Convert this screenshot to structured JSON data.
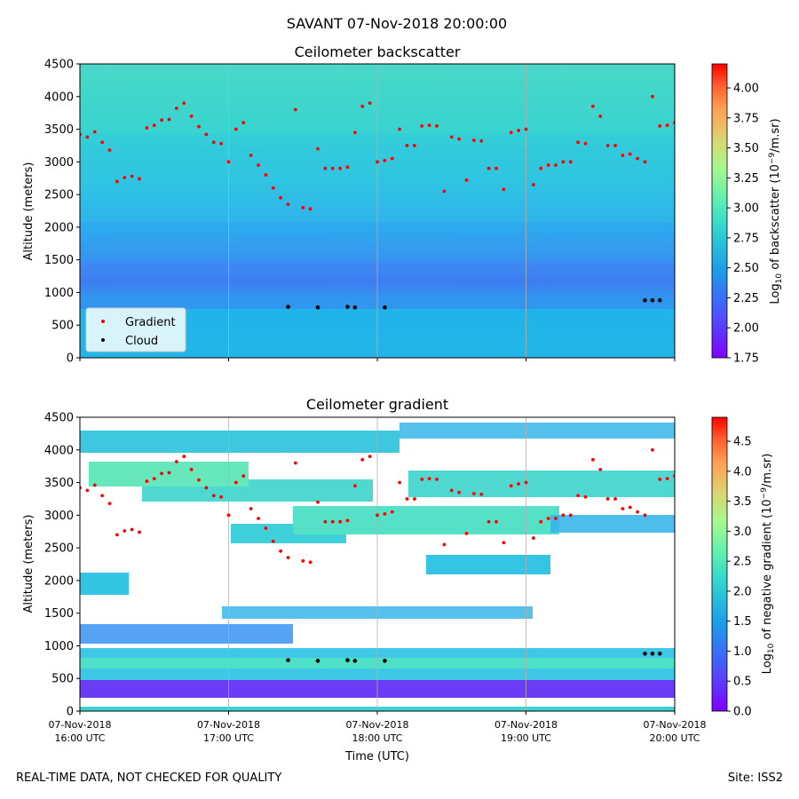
{
  "figure": {
    "suptitle": "SAVANT 07-Nov-2018 20:00:00",
    "footer_left": "REAL-TIME DATA, NOT CHECKED FOR QUALITY",
    "footer_right": "Site: ISS2",
    "xlabel": "Time (UTC)",
    "x_ticks": [
      {
        "line1": "07-Nov-2018",
        "line2": "16:00 UTC"
      },
      {
        "line1": "07-Nov-2018",
        "line2": "17:00 UTC"
      },
      {
        "line1": "07-Nov-2018",
        "line2": "18:00 UTC"
      },
      {
        "line1": "07-Nov-2018",
        "line2": "19:00 UTC"
      },
      {
        "line1": "07-Nov-2018",
        "line2": "20:00 UTC"
      }
    ]
  },
  "chart_data": [
    {
      "type": "heatmap",
      "title": "Ceilometer backscatter",
      "xlabel": "",
      "ylabel": "Altitude (meters)",
      "xlim_hours_utc": [
        16,
        20
      ],
      "ylim": [
        0,
        4500
      ],
      "y_ticks": [
        0,
        500,
        1000,
        1500,
        2000,
        2500,
        3000,
        3500,
        4000,
        4500
      ],
      "grid": "vertical",
      "colorbar": {
        "label": "Log10 of backscatter (10^-9/m.sr)",
        "range": [
          1.75,
          4.2
        ],
        "ticks": [
          "1.75",
          "2.00",
          "2.25",
          "2.50",
          "2.75",
          "3.00",
          "3.25",
          "3.50",
          "3.75",
          "4.00"
        ],
        "colormap": "rainbow"
      },
      "legend": {
        "placement": "lower-left",
        "entries": [
          {
            "name": "Gradient",
            "color": "#ff0000"
          },
          {
            "name": "Cloud",
            "color": "#000000"
          }
        ]
      },
      "series": [
        {
          "name": "Gradient",
          "color": "#ff0000",
          "points": [
            [
              16.0,
              3420
            ],
            [
              16.05,
              3380
            ],
            [
              16.1,
              3460
            ],
            [
              16.15,
              3300
            ],
            [
              16.2,
              3180
            ],
            [
              16.25,
              2700
            ],
            [
              16.3,
              2760
            ],
            [
              16.35,
              2780
            ],
            [
              16.4,
              2740
            ],
            [
              16.45,
              3520
            ],
            [
              16.5,
              3560
            ],
            [
              16.55,
              3640
            ],
            [
              16.6,
              3650
            ],
            [
              16.65,
              3820
            ],
            [
              16.7,
              3900
            ],
            [
              16.75,
              3700
            ],
            [
              16.8,
              3540
            ],
            [
              16.85,
              3420
            ],
            [
              16.9,
              3300
            ],
            [
              16.95,
              3280
            ],
            [
              17.0,
              3000
            ],
            [
              17.05,
              3500
            ],
            [
              17.1,
              3600
            ],
            [
              17.15,
              3100
            ],
            [
              17.2,
              2950
            ],
            [
              17.25,
              2800
            ],
            [
              17.3,
              2600
            ],
            [
              17.35,
              2450
            ],
            [
              17.4,
              2350
            ],
            [
              17.45,
              3800
            ],
            [
              17.5,
              2300
            ],
            [
              17.55,
              2280
            ],
            [
              17.6,
              3200
            ],
            [
              17.65,
              2900
            ],
            [
              17.7,
              2900
            ],
            [
              17.75,
              2900
            ],
            [
              17.8,
              2920
            ],
            [
              17.85,
              3450
            ],
            [
              17.9,
              3850
            ],
            [
              17.95,
              3900
            ],
            [
              18.0,
              3000
            ],
            [
              18.05,
              3020
            ],
            [
              18.1,
              3050
            ],
            [
              18.15,
              3500
            ],
            [
              18.2,
              3250
            ],
            [
              18.25,
              3250
            ],
            [
              18.3,
              3550
            ],
            [
              18.35,
              3560
            ],
            [
              18.4,
              3550
            ],
            [
              18.45,
              2550
            ],
            [
              18.5,
              3380
            ],
            [
              18.55,
              3350
            ],
            [
              18.6,
              2720
            ],
            [
              18.65,
              3330
            ],
            [
              18.7,
              3320
            ],
            [
              18.75,
              2900
            ],
            [
              18.8,
              2900
            ],
            [
              18.85,
              2580
            ],
            [
              18.9,
              3450
            ],
            [
              18.95,
              3480
            ],
            [
              19.0,
              3500
            ],
            [
              19.05,
              2650
            ],
            [
              19.1,
              2900
            ],
            [
              19.15,
              2950
            ],
            [
              19.2,
              2950
            ],
            [
              19.25,
              3000
            ],
            [
              19.3,
              3000
            ],
            [
              19.35,
              3300
            ],
            [
              19.4,
              3280
            ],
            [
              19.45,
              3850
            ],
            [
              19.5,
              3700
            ],
            [
              19.55,
              3250
            ],
            [
              19.6,
              3250
            ],
            [
              19.65,
              3100
            ],
            [
              19.7,
              3120
            ],
            [
              19.75,
              3050
            ],
            [
              19.8,
              3000
            ],
            [
              19.85,
              4000
            ],
            [
              19.9,
              3550
            ],
            [
              19.95,
              3560
            ],
            [
              20.0,
              3600
            ]
          ]
        },
        {
          "name": "Cloud",
          "color": "#000000",
          "points": [
            [
              17.4,
              780
            ],
            [
              17.6,
              770
            ],
            [
              17.8,
              780
            ],
            [
              17.85,
              770
            ],
            [
              18.05,
              770
            ],
            [
              19.8,
              880
            ],
            [
              19.85,
              880
            ],
            [
              19.9,
              880
            ]
          ]
        }
      ]
    },
    {
      "type": "heatmap",
      "title": "Ceilometer gradient",
      "xlabel": "Time (UTC)",
      "ylabel": "Altitude (meters)",
      "xlim_hours_utc": [
        16,
        20
      ],
      "ylim": [
        0,
        4500
      ],
      "y_ticks": [
        0,
        500,
        1000,
        1500,
        2000,
        2500,
        3000,
        3500,
        4000,
        4500
      ],
      "grid": "vertical",
      "colorbar": {
        "label": "Log10 of negative gradient (10^-9/m.sr)",
        "range": [
          0.0,
          4.9
        ],
        "ticks": [
          "0.0",
          "0.5",
          "1.0",
          "1.5",
          "2.0",
          "2.5",
          "3.0",
          "3.5",
          "4.0",
          "4.5"
        ],
        "colormap": "rainbow"
      },
      "series": [
        {
          "name": "Gradient",
          "color": "#ff0000",
          "points": [
            [
              16.0,
              3420
            ],
            [
              16.05,
              3380
            ],
            [
              16.1,
              3460
            ],
            [
              16.15,
              3300
            ],
            [
              16.2,
              3180
            ],
            [
              16.25,
              2700
            ],
            [
              16.3,
              2760
            ],
            [
              16.35,
              2780
            ],
            [
              16.4,
              2740
            ],
            [
              16.45,
              3520
            ],
            [
              16.5,
              3560
            ],
            [
              16.55,
              3640
            ],
            [
              16.6,
              3650
            ],
            [
              16.65,
              3820
            ],
            [
              16.7,
              3900
            ],
            [
              16.75,
              3700
            ],
            [
              16.8,
              3540
            ],
            [
              16.85,
              3420
            ],
            [
              16.9,
              3300
            ],
            [
              16.95,
              3280
            ],
            [
              17.0,
              3000
            ],
            [
              17.05,
              3500
            ],
            [
              17.1,
              3600
            ],
            [
              17.15,
              3100
            ],
            [
              17.2,
              2950
            ],
            [
              17.25,
              2800
            ],
            [
              17.3,
              2600
            ],
            [
              17.35,
              2450
            ],
            [
              17.4,
              2350
            ],
            [
              17.45,
              3800
            ],
            [
              17.5,
              2300
            ],
            [
              17.55,
              2280
            ],
            [
              17.6,
              3200
            ],
            [
              17.65,
              2900
            ],
            [
              17.7,
              2900
            ],
            [
              17.75,
              2900
            ],
            [
              17.8,
              2920
            ],
            [
              17.85,
              3450
            ],
            [
              17.9,
              3850
            ],
            [
              17.95,
              3900
            ],
            [
              18.0,
              3000
            ],
            [
              18.05,
              3020
            ],
            [
              18.1,
              3050
            ],
            [
              18.15,
              3500
            ],
            [
              18.2,
              3250
            ],
            [
              18.25,
              3250
            ],
            [
              18.3,
              3550
            ],
            [
              18.35,
              3560
            ],
            [
              18.4,
              3550
            ],
            [
              18.45,
              2550
            ],
            [
              18.5,
              3380
            ],
            [
              18.55,
              3350
            ],
            [
              18.6,
              2720
            ],
            [
              18.65,
              3330
            ],
            [
              18.7,
              3320
            ],
            [
              18.75,
              2900
            ],
            [
              18.8,
              2900
            ],
            [
              18.85,
              2580
            ],
            [
              18.9,
              3450
            ],
            [
              18.95,
              3480
            ],
            [
              19.0,
              3500
            ],
            [
              19.05,
              2650
            ],
            [
              19.1,
              2900
            ],
            [
              19.15,
              2950
            ],
            [
              19.2,
              2950
            ],
            [
              19.25,
              3000
            ],
            [
              19.3,
              3000
            ],
            [
              19.35,
              3300
            ],
            [
              19.4,
              3280
            ],
            [
              19.45,
              3850
            ],
            [
              19.5,
              3700
            ],
            [
              19.55,
              3250
            ],
            [
              19.6,
              3250
            ],
            [
              19.65,
              3100
            ],
            [
              19.7,
              3120
            ],
            [
              19.75,
              3050
            ],
            [
              19.8,
              3000
            ],
            [
              19.85,
              4000
            ],
            [
              19.9,
              3550
            ],
            [
              19.95,
              3560
            ],
            [
              20.0,
              3600
            ]
          ]
        },
        {
          "name": "Cloud",
          "color": "#000000",
          "points": [
            [
              17.4,
              780
            ],
            [
              17.6,
              770
            ],
            [
              17.8,
              780
            ],
            [
              17.85,
              770
            ],
            [
              18.05,
              770
            ],
            [
              19.8,
              880
            ],
            [
              19.85,
              880
            ],
            [
              19.9,
              880
            ]
          ]
        }
      ]
    }
  ]
}
